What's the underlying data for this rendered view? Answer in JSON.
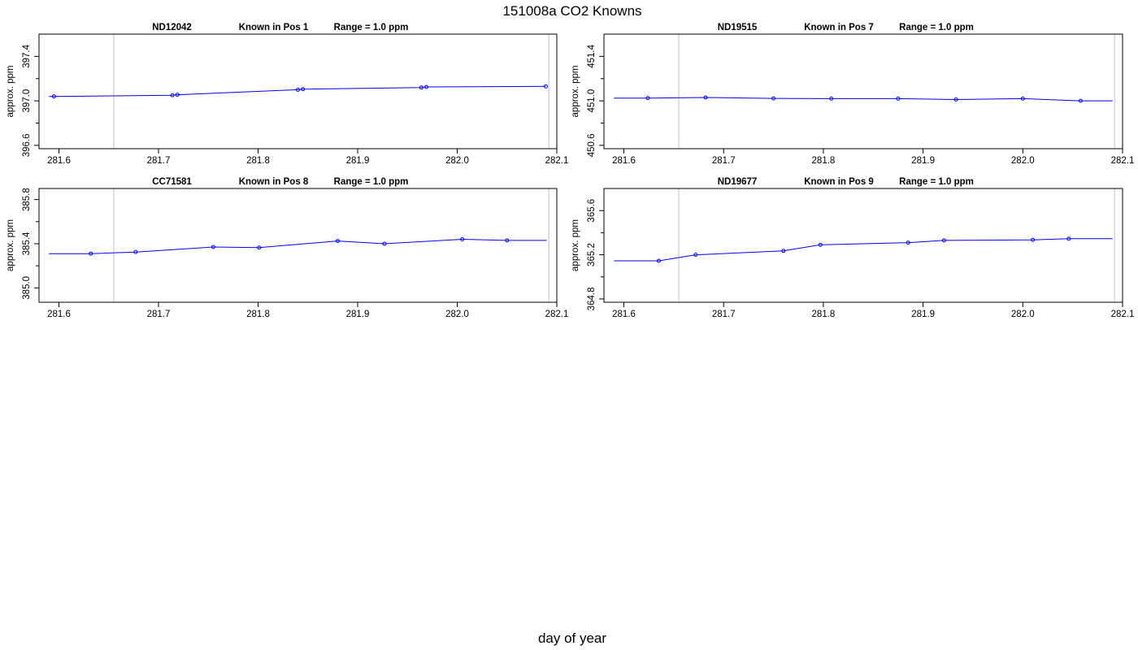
{
  "title": "151008a   CO2 Knowns",
  "xlabel": "day of year",
  "colors": {
    "series": "#0000ff",
    "marker_ref": "#cccccc",
    "axis": "#000000"
  },
  "chart_data": [
    {
      "type": "line",
      "title_id": "ND12042",
      "title_pos": "Known in Pos 1",
      "title_range": "Range = 1.0 ppm",
      "ylabel": "approx. ppm",
      "xlim": [
        281.58,
        282.1
      ],
      "ylim": [
        396.57,
        397.6
      ],
      "xticks": [
        281.6,
        281.7,
        281.8,
        281.9,
        282.0,
        282.1
      ],
      "xticklabels": [
        "281.6",
        "281.7",
        "281.8",
        "281.9",
        "282.0",
        "282.1"
      ],
      "yticks": [
        396.6,
        397.0,
        397.4
      ],
      "yticklabels": [
        "396.6",
        "397.0",
        "397.4"
      ],
      "yminorticks": [
        396.8,
        397.2
      ],
      "vlines": [
        281.655,
        282.092
      ],
      "line_start": 281.59,
      "x": [
        281.595,
        281.714,
        281.719,
        281.84,
        281.845,
        281.964,
        281.969,
        282.089
      ],
      "y": [
        397.04,
        397.05,
        397.055,
        397.1,
        397.105,
        397.12,
        397.125,
        397.13
      ]
    },
    {
      "type": "line",
      "title_id": "ND19515",
      "title_pos": "Known in Pos 7",
      "title_range": "Range = 1.0 ppm",
      "ylabel": "approx. ppm",
      "xlim": [
        281.58,
        282.1
      ],
      "ylim": [
        450.57,
        451.6
      ],
      "xticks": [
        281.6,
        281.7,
        281.8,
        281.9,
        282.0,
        282.1
      ],
      "xticklabels": [
        "281.6",
        "281.7",
        "281.8",
        "281.9",
        "282.0",
        "282.1"
      ],
      "yticks": [
        450.6,
        451.0,
        451.4
      ],
      "yticklabels": [
        "450.6",
        "451.0",
        "451.4"
      ],
      "yminorticks": [
        450.8,
        451.2
      ],
      "vlines": [
        281.655,
        282.092
      ],
      "line_start": 281.59,
      "line_end": 282.09,
      "x": [
        281.624,
        281.682,
        281.75,
        281.808,
        281.875,
        281.933,
        282.0,
        282.058
      ],
      "y": [
        451.025,
        451.03,
        451.022,
        451.02,
        451.02,
        451.012,
        451.02,
        451.0
      ]
    },
    {
      "type": "line",
      "title_id": "CC71581",
      "title_pos": "Known in Pos 8",
      "title_range": "Range = 1.0 ppm",
      "ylabel": "approx. ppm",
      "xlim": [
        281.58,
        282.1
      ],
      "ylim": [
        384.87,
        385.9
      ],
      "xticks": [
        281.6,
        281.7,
        281.8,
        281.9,
        282.0,
        282.1
      ],
      "xticklabels": [
        "281.6",
        "281.7",
        "281.8",
        "281.9",
        "282.0",
        "282.1"
      ],
      "yticks": [
        385.0,
        385.4,
        385.8
      ],
      "yticklabels": [
        "385.0",
        "385.4",
        "385.8"
      ],
      "yminorticks": [
        385.2,
        385.6
      ],
      "vlines": [
        281.655,
        282.092
      ],
      "line_start": 281.59,
      "line_end": 282.09,
      "x": [
        281.632,
        281.677,
        281.755,
        281.801,
        281.88,
        281.927,
        282.005,
        282.05
      ],
      "y": [
        385.31,
        385.325,
        385.37,
        385.365,
        385.425,
        385.4,
        385.44,
        385.43
      ]
    },
    {
      "type": "line",
      "title_id": "ND19677",
      "title_pos": "Known in Pos 9",
      "title_range": "Range = 1.0 ppm",
      "ylabel": "approx. ppm",
      "xlim": [
        281.58,
        282.1
      ],
      "ylim": [
        364.77,
        365.8
      ],
      "xticks": [
        281.6,
        281.7,
        281.8,
        281.9,
        282.0,
        282.1
      ],
      "xticklabels": [
        "281.6",
        "281.7",
        "281.8",
        "281.9",
        "282.0",
        "282.1"
      ],
      "yticks": [
        364.8,
        365.2,
        365.6
      ],
      "yticklabels": [
        "364.8",
        "365.2",
        "365.6"
      ],
      "yminorticks": [
        365.0,
        365.4
      ],
      "vlines": [
        281.655,
        282.092
      ],
      "line_start": 281.59,
      "line_end": 282.09,
      "x": [
        281.635,
        281.672,
        281.76,
        281.797,
        281.885,
        281.921,
        282.01,
        282.046
      ],
      "y": [
        365.145,
        365.2,
        365.235,
        365.29,
        365.31,
        365.33,
        365.335,
        365.345
      ]
    }
  ]
}
